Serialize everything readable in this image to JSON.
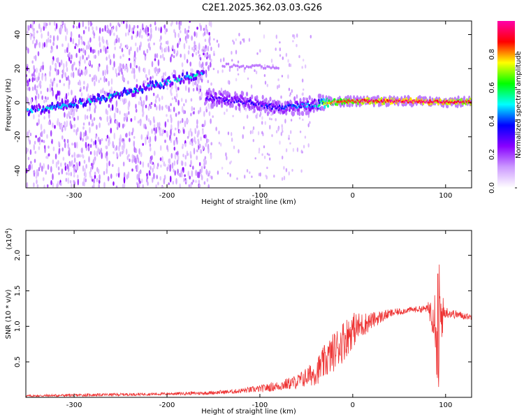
{
  "title": "C2E1.2025.362.03.03.G26",
  "chart_data": [
    {
      "type": "heatmap",
      "name": "spectrogram",
      "xlabel": "Height of straight line (km)",
      "ylabel": "Frequency (Hz)",
      "xlim": [
        -352,
        128
      ],
      "ylim": [
        -50,
        48
      ],
      "xticks": [
        -300,
        -200,
        -100,
        0,
        100
      ],
      "yticks": [
        -40,
        -20,
        0,
        20,
        40
      ],
      "xtick_labels": [
        "-300",
        "-200",
        "-100",
        "0",
        "100"
      ],
      "ytick_labels": [
        "-40",
        "-20",
        "0",
        "20",
        "40"
      ],
      "colorbar": {
        "label": "Normalized spectral amplitude",
        "range": [
          0,
          1
        ],
        "ticks": [
          0.0,
          0.2,
          0.4,
          0.6,
          0.8
        ],
        "tick_labels": [
          "0.0",
          "0.2",
          "0.4",
          "0.6",
          "0.8"
        ],
        "colors": [
          "#ffffff",
          "#cc99ff",
          "#8800ff",
          "#0000ff",
          "#00ffff",
          "#00ff00",
          "#ffff00",
          "#ff0000",
          "#ff00aa"
        ]
      },
      "features": {
        "rising_trace": {
          "x": [
            -350,
            -300,
            -250,
            -200,
            -160
          ],
          "y": [
            -5,
            -1,
            5,
            12,
            18
          ],
          "amplitude": 0.35
        },
        "main_trace": {
          "x": [
            -158,
            -120,
            -80,
            -40,
            -25,
            0,
            50,
            90,
            128
          ],
          "y": [
            3,
            1,
            -3,
            -1,
            0,
            1,
            1,
            0.5,
            0.5
          ],
          "amplitude": [
            0.25,
            0.3,
            0.35,
            0.45,
            0.8,
            0.9,
            0.95,
            0.95,
            0.9
          ]
        },
        "drop_trace": {
          "x": [
            -60,
            -45,
            -35,
            -25
          ],
          "y": [
            -5,
            -12,
            -20,
            -28
          ],
          "amplitude": 0.2
        },
        "side_trace": {
          "x": [
            -140,
            -110,
            -80
          ],
          "y": [
            22,
            21,
            21
          ],
          "amplitude": 0.15
        }
      }
    },
    {
      "type": "line",
      "name": "snr",
      "xlabel": "Height of straight line (km)",
      "ylabel": "SNR (10 * v/v)",
      "scale_label": "(x10",
      "scale_exp": "4",
      "scale_close": ")",
      "xlim": [
        -352,
        128
      ],
      "ylim": [
        0,
        2.35
      ],
      "xticks": [
        -300,
        -200,
        -100,
        0,
        100
      ],
      "yticks": [
        0.5,
        1.0,
        1.5,
        2.0
      ],
      "xtick_labels": [
        "-300",
        "-200",
        "-100",
        "0",
        "100"
      ],
      "ytick_labels": [
        "0.5",
        "1.0",
        "1.5",
        "2.0"
      ],
      "color": "#ee3333",
      "series": [
        {
          "name": "SNR",
          "x": [
            -352,
            -300,
            -250,
            -200,
            -160,
            -130,
            -100,
            -80,
            -60,
            -40,
            -30,
            -20,
            -10,
            0,
            20,
            40,
            60,
            80,
            88,
            92,
            95,
            100,
            110,
            128
          ],
          "y": [
            0.02,
            0.03,
            0.04,
            0.05,
            0.06,
            0.08,
            0.12,
            0.16,
            0.22,
            0.35,
            0.5,
            0.65,
            0.8,
            0.95,
            1.08,
            1.18,
            1.23,
            1.25,
            1.2,
            1.0,
            1.15,
            1.2,
            1.17,
            1.13
          ],
          "noise": [
            0.015,
            0.02,
            0.02,
            0.02,
            0.025,
            0.03,
            0.05,
            0.07,
            0.1,
            0.18,
            0.25,
            0.28,
            0.3,
            0.25,
            0.12,
            0.06,
            0.04,
            0.05,
            0.4,
            0.9,
            0.4,
            0.08,
            0.06,
            0.04
          ]
        }
      ]
    }
  ]
}
